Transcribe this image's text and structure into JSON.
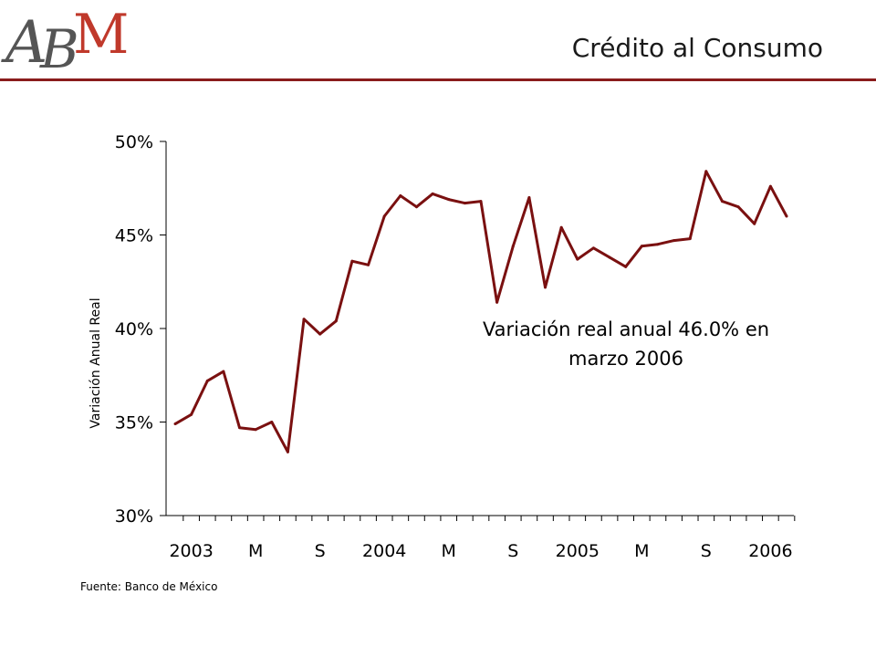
{
  "header": {
    "logo_text": "ABM",
    "title": "Crédito al Consumo"
  },
  "colors": {
    "accent": "#8a1c1c",
    "series": "#7a1010",
    "logo_red": "#c0392b",
    "logo_gray": "#555555"
  },
  "chart_data": {
    "type": "line",
    "ylabel": "Variación Anual Real",
    "ylim": [
      0.3,
      0.5
    ],
    "y_ticks": [
      "30%",
      "35%",
      "40%",
      "45%",
      "50%"
    ],
    "y_tick_values": [
      0.3,
      0.35,
      0.4,
      0.45,
      0.5
    ],
    "x_tick_labels": [
      "2003",
      "M",
      "S",
      "2004",
      "M",
      "S",
      "2005",
      "M",
      "S",
      "2006"
    ],
    "x_tick_label_indices": [
      1,
      5,
      9,
      13,
      17,
      21,
      25,
      29,
      33,
      37
    ],
    "grid": false,
    "series": [
      {
        "values": [
          0.349,
          0.354,
          0.372,
          0.377,
          0.347,
          0.346,
          0.35,
          0.334,
          0.405,
          0.397,
          0.404,
          0.436,
          0.434,
          0.46,
          0.471,
          0.465,
          0.472,
          0.469,
          0.467,
          0.468,
          0.414,
          0.444,
          0.47,
          0.422,
          0.454,
          0.437,
          0.443,
          0.438,
          0.433,
          0.444,
          0.445,
          0.447,
          0.448,
          0.484,
          0.468,
          0.465,
          0.456,
          0.476,
          0.46
        ]
      }
    ],
    "annotation": [
      "Variación real anual 46.0% en",
      "marzo 2006"
    ]
  },
  "footer": {
    "source": "Fuente: Banco de México"
  }
}
